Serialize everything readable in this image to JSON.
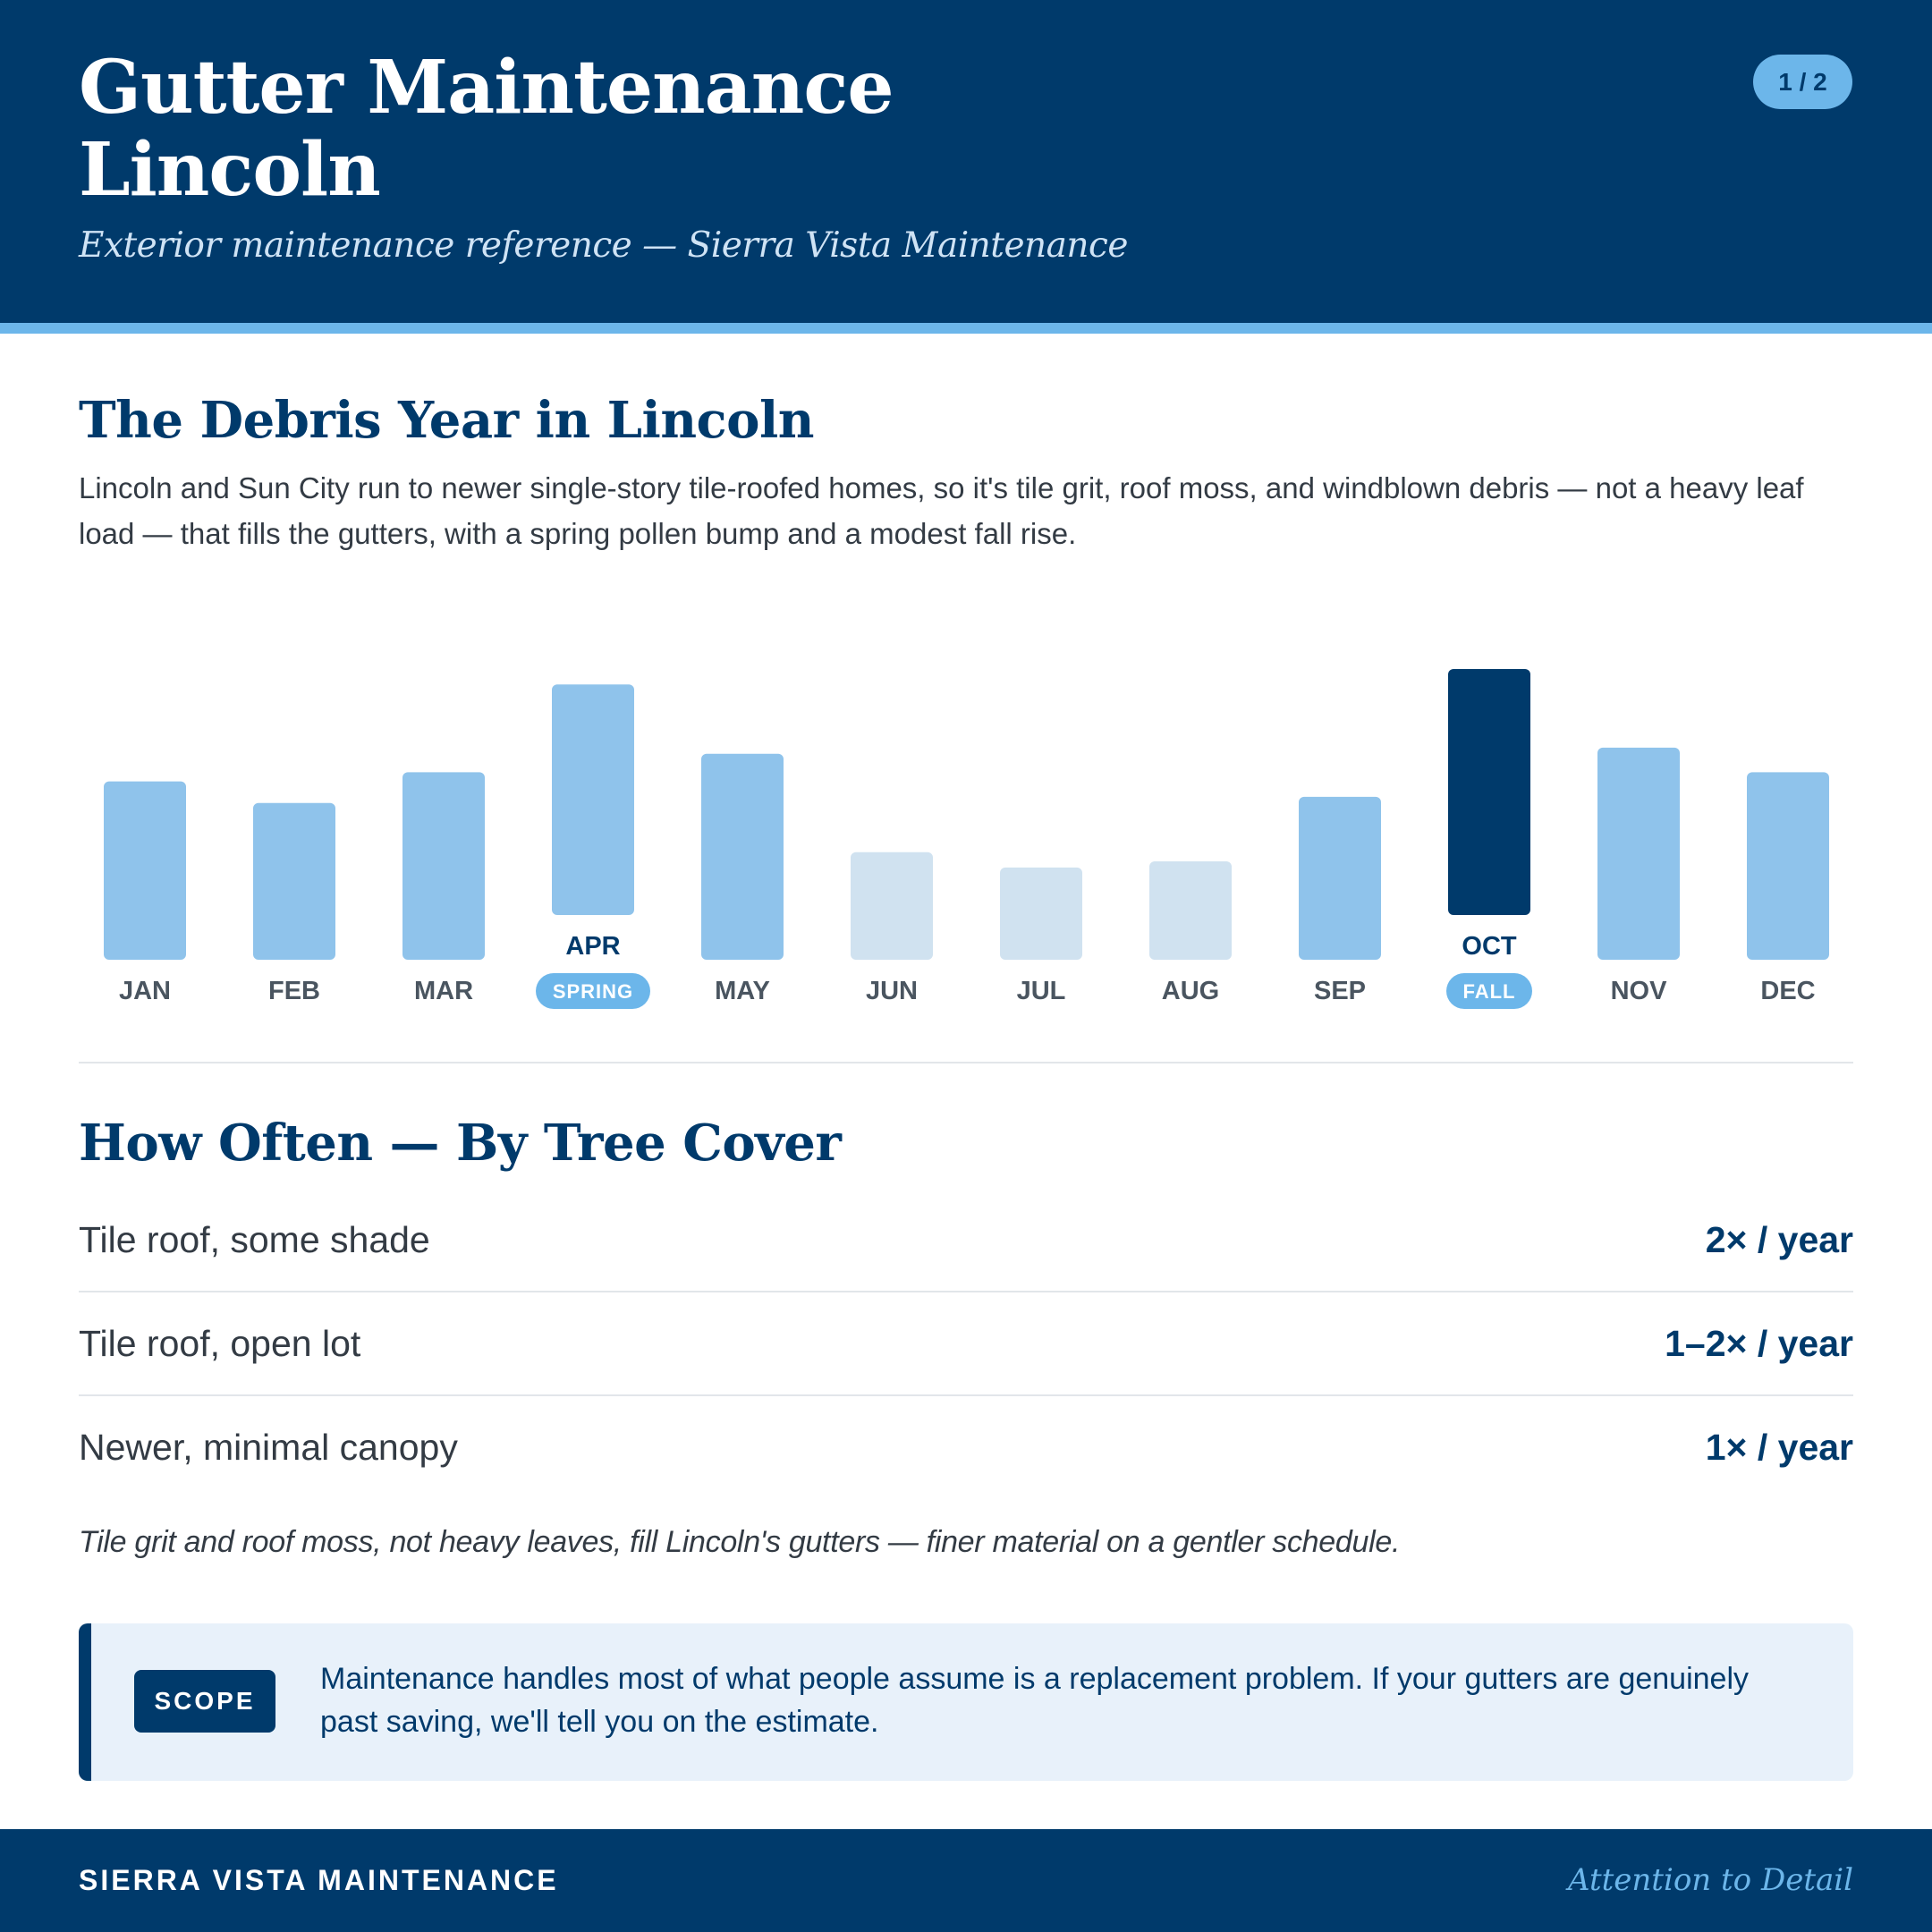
{
  "header": {
    "title_line1": "Gutter Maintenance",
    "title_line2": "Lincoln",
    "subtitle": "Exterior maintenance reference — Sierra Vista Maintenance",
    "page_indicator": "1 / 2"
  },
  "debris": {
    "heading": "The Debris Year in Lincoln",
    "intro": "Lincoln and Sun City run to newer single-story tile-roofed homes, so it's tile grit, roof moss, and windblown debris — not a heavy leaf load — that fills the gutters, with a spring pollen bump and a modest fall rise."
  },
  "chart_data": {
    "type": "bar",
    "categories": [
      "JAN",
      "FEB",
      "MAR",
      "APR",
      "MAY",
      "JUN",
      "JUL",
      "AUG",
      "SEP",
      "OCT",
      "NOV",
      "DEC"
    ],
    "values": [
      58,
      51,
      61,
      75,
      67,
      35,
      30,
      32,
      53,
      80,
      69,
      61
    ],
    "levels": [
      "mid",
      "mid",
      "mid",
      "mid",
      "mid",
      "low",
      "low",
      "low",
      "mid",
      "peak",
      "mid",
      "mid"
    ],
    "highlights": [
      {
        "category": "APR",
        "badge": "SPRING"
      },
      {
        "category": "OCT",
        "badge": "FALL"
      }
    ],
    "colors": {
      "low": "#D0E2F0",
      "mid": "#8FC3EB",
      "peak": "#003A6B",
      "badge": "#6CB6EA"
    }
  },
  "frequency": {
    "heading": "How Often — By Tree Cover",
    "rows": [
      {
        "label": "Tile roof, some shade",
        "value": "2× / year"
      },
      {
        "label": "Tile roof, open lot",
        "value": "1–2× / year"
      },
      {
        "label": "Newer, minimal canopy",
        "value": "1× / year"
      }
    ],
    "note": "Tile grit and roof moss, not heavy leaves, fill Lincoln's gutters — finer material on a gentler schedule."
  },
  "scope": {
    "tag": "SCOPE",
    "text": "Maintenance handles most of what people assume is a replacement problem. If your gutters are genuinely past saving, we'll tell you on the estimate."
  },
  "footer": {
    "brand": "SIERRA VISTA MAINTENANCE",
    "tagline": "Attention to Detail"
  },
  "colors": {
    "navy": "#003A6B",
    "accent": "#6CB6EA",
    "scope_background": "#E8F1FA"
  }
}
